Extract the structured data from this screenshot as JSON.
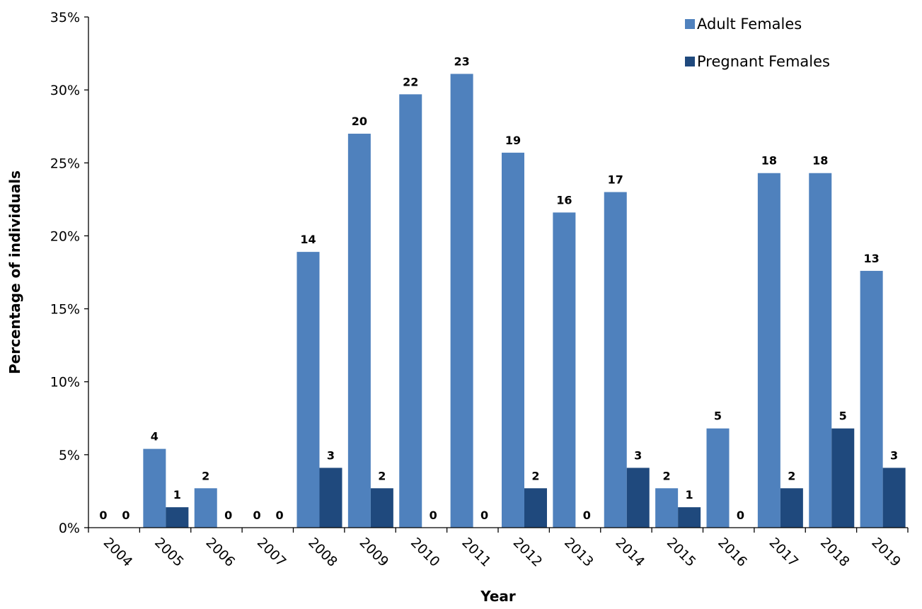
{
  "chart_data": {
    "type": "bar",
    "xlabel": "Year",
    "ylabel": "Percentage of individuals",
    "categories": [
      "2004",
      "2005",
      "2006",
      "2007",
      "2008",
      "2009",
      "2010",
      "2011",
      "2012",
      "2013",
      "2014",
      "2015",
      "2016",
      "2017",
      "2018",
      "2019"
    ],
    "series": [
      {
        "name": "Adult Females",
        "color": "#4f81bd",
        "values": [
          0,
          5.4,
          2.7,
          0,
          18.9,
          27.0,
          29.7,
          31.1,
          25.7,
          21.6,
          23.0,
          2.7,
          6.8,
          24.3,
          24.3,
          17.6
        ],
        "counts": [
          0,
          4,
          2,
          0,
          14,
          20,
          22,
          23,
          19,
          16,
          17,
          2,
          5,
          18,
          18,
          13
        ]
      },
      {
        "name": "Pregnant Females",
        "color": "#1f497d",
        "values": [
          0,
          1.4,
          0,
          0,
          4.1,
          2.7,
          0,
          0,
          2.7,
          0,
          4.1,
          1.4,
          0,
          2.7,
          6.8,
          4.1
        ],
        "counts": [
          0,
          1,
          0,
          0,
          3,
          2,
          0,
          0,
          2,
          0,
          3,
          1,
          0,
          2,
          5,
          3
        ]
      }
    ],
    "ylim": [
      0,
      35
    ],
    "yticks": [
      {
        "value": 0,
        "label": "0%"
      },
      {
        "value": 5,
        "label": "5%"
      },
      {
        "value": 10,
        "label": "10%"
      },
      {
        "value": 15,
        "label": "15%"
      },
      {
        "value": 20,
        "label": "20%"
      },
      {
        "value": 25,
        "label": "25%"
      },
      {
        "value": 30,
        "label": "30%"
      },
      {
        "value": 35,
        "label": "35%"
      }
    ],
    "legend": "top-right"
  }
}
